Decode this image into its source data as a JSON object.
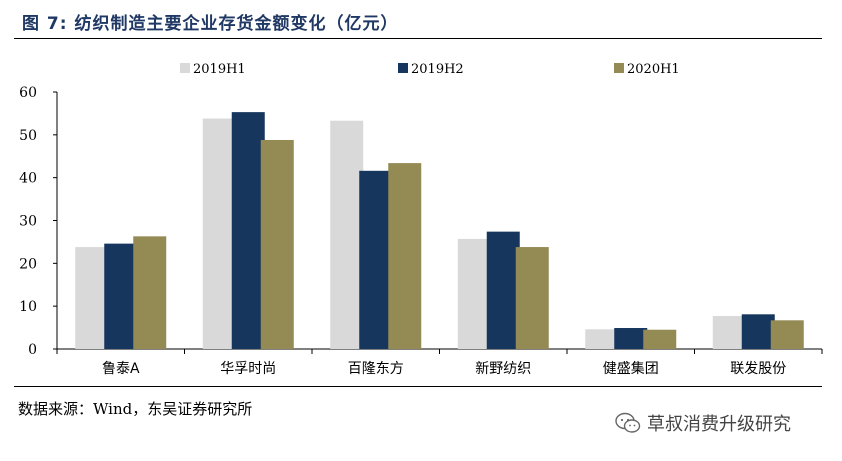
{
  "figure": {
    "title": "图 7:  纺织制造主要企业存货金额变化（亿元）",
    "source": "数据来源：Wind，东吴证券研究所",
    "watermark": "草叔消费升级研究",
    "watermark_icon": "wechat-icon"
  },
  "chart_data": {
    "type": "bar",
    "title": "",
    "xlabel": "",
    "ylabel": "",
    "ylim": [
      0,
      60
    ],
    "yticks": [
      0,
      10,
      20,
      30,
      40,
      50,
      60
    ],
    "grid": false,
    "legend_position": "top",
    "categories": [
      "鲁泰A",
      "华孚时尚",
      "百隆东方",
      "新野纺织",
      "健盛集团",
      "联发股份"
    ],
    "series": [
      {
        "name": "2019H1",
        "color": "#d9d9d9",
        "values": [
          23.8,
          53.8,
          53.3,
          25.7,
          4.6,
          7.7
        ]
      },
      {
        "name": "2019H2",
        "color": "#17365d",
        "values": [
          24.6,
          55.3,
          41.6,
          27.4,
          4.9,
          8.1
        ]
      },
      {
        "name": "2020H1",
        "color": "#948a54",
        "values": [
          26.3,
          48.8,
          43.4,
          23.8,
          4.5,
          6.7
        ]
      }
    ]
  }
}
